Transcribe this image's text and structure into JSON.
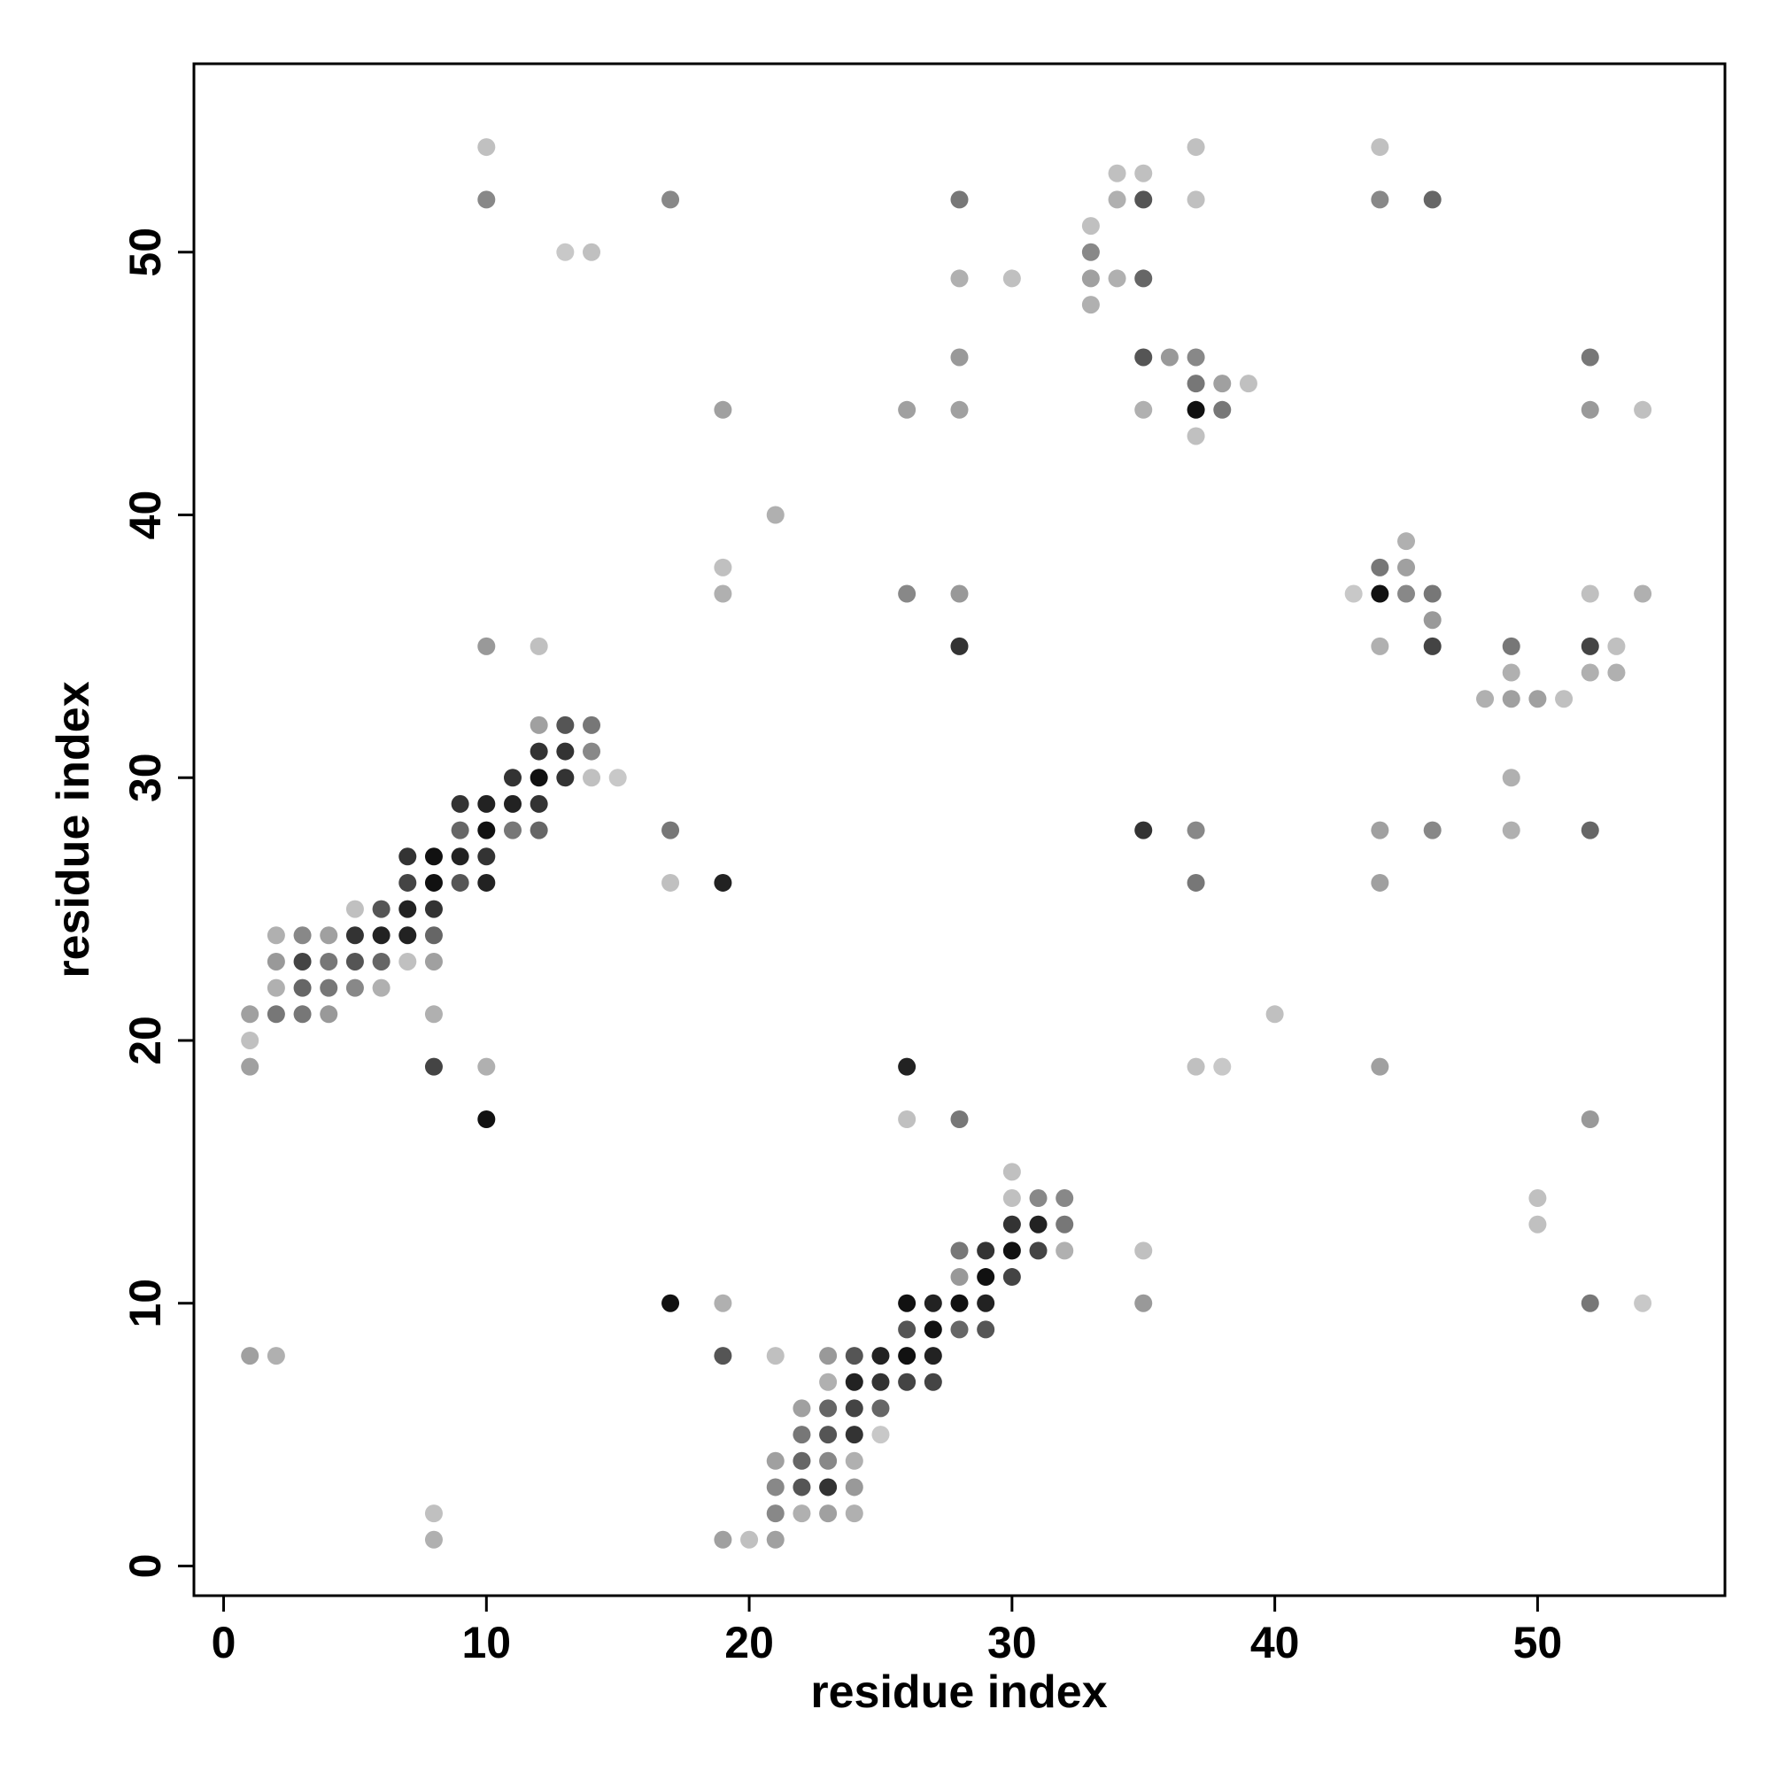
{
  "chart_data": {
    "type": "scatter",
    "x_label": "residue index",
    "y_label": "residue index",
    "xlim": [
      -1.13,
      57.13
    ],
    "ylim": [
      -1.13,
      57.17
    ],
    "xticks": [
      0,
      10,
      20,
      30,
      40,
      50
    ],
    "yticks": [
      0,
      10,
      20,
      30,
      40,
      50
    ],
    "x": [
      10,
      37,
      44,
      34,
      35,
      10,
      17,
      28,
      34,
      35,
      37,
      44,
      46,
      33,
      13,
      14,
      33,
      28,
      30,
      33,
      34,
      35,
      33,
      28,
      35,
      36,
      37,
      52,
      37,
      38,
      39,
      19,
      26,
      28,
      35,
      37,
      38,
      52,
      54,
      37,
      21,
      45,
      19,
      44,
      45,
      19,
      26,
      28,
      43,
      44,
      45,
      46,
      52,
      54,
      46,
      10,
      12,
      28,
      44,
      46,
      49,
      52,
      53,
      49,
      52,
      53,
      48,
      49,
      50,
      51,
      12,
      13,
      14,
      12,
      13,
      14,
      11,
      12,
      13,
      14,
      15,
      49,
      9,
      10,
      11,
      12,
      9,
      10,
      11,
      12,
      17,
      35,
      37,
      44,
      46,
      49,
      52,
      7,
      8,
      9,
      10,
      7,
      8,
      9,
      10,
      17,
      19,
      37,
      44,
      5,
      6,
      7,
      8,
      2,
      3,
      4,
      5,
      6,
      7,
      8,
      2,
      3,
      4,
      5,
      6,
      7,
      8,
      2,
      3,
      4,
      5,
      6,
      1,
      2,
      3,
      4,
      8,
      40,
      1,
      1,
      8,
      10,
      26,
      37,
      38,
      44,
      10,
      26,
      28,
      52,
      30,
      30,
      31,
      32,
      50,
      30,
      31,
      32,
      50,
      28,
      29,
      30,
      31,
      32,
      35,
      28,
      29,
      30,
      17,
      19,
      26,
      27,
      28,
      29,
      35,
      52,
      54,
      26,
      27,
      28,
      29,
      1,
      2,
      19,
      21,
      23,
      24,
      25,
      26,
      27,
      23,
      24,
      25,
      26,
      27,
      22,
      23,
      24,
      25,
      22,
      23,
      24,
      25,
      21,
      22,
      23,
      24,
      21,
      22,
      23,
      24,
      8,
      21,
      22,
      23,
      24,
      8,
      19,
      20,
      21
    ],
    "values": [
      54,
      54,
      54,
      53,
      53,
      52,
      52,
      52,
      52,
      52,
      52,
      52,
      52,
      51,
      50,
      50,
      50,
      49,
      49,
      49,
      49,
      49,
      48,
      46,
      46,
      46,
      46,
      46,
      45,
      45,
      45,
      44,
      44,
      44,
      44,
      44,
      44,
      44,
      44,
      43,
      40,
      39,
      38,
      38,
      38,
      37,
      37,
      37,
      37,
      37,
      37,
      37,
      37,
      37,
      36,
      35,
      35,
      35,
      35,
      35,
      35,
      35,
      35,
      34,
      34,
      34,
      33,
      33,
      33,
      33,
      32,
      32,
      32,
      31,
      31,
      31,
      30,
      30,
      30,
      30,
      30,
      30,
      29,
      29,
      29,
      29,
      28,
      28,
      28,
      28,
      28,
      28,
      28,
      28,
      28,
      28,
      28,
      27,
      27,
      27,
      27,
      26,
      26,
      26,
      26,
      26,
      26,
      26,
      26,
      25,
      25,
      25,
      25,
      24,
      24,
      24,
      24,
      24,
      24,
      24,
      23,
      23,
      23,
      23,
      23,
      23,
      23,
      22,
      22,
      22,
      22,
      22,
      21,
      21,
      21,
      21,
      21,
      21,
      20,
      19,
      19,
      19,
      19,
      19,
      19,
      19,
      17,
      17,
      17,
      17,
      15,
      14,
      14,
      14,
      14,
      13,
      13,
      13,
      13,
      12,
      12,
      12,
      12,
      12,
      12,
      11,
      11,
      11,
      10,
      10,
      10,
      10,
      10,
      10,
      10,
      10,
      10,
      9,
      9,
      9,
      9,
      8,
      8,
      8,
      8,
      8,
      8,
      8,
      8,
      8,
      7,
      7,
      7,
      7,
      7,
      6,
      6,
      6,
      6,
      5,
      5,
      5,
      5,
      4,
      4,
      4,
      4,
      3,
      3,
      3,
      3,
      2,
      2,
      2,
      2,
      2,
      1,
      1,
      1,
      1
    ],
    "colors": [
      "#c0c0c0",
      "#c0c0c0",
      "#c0c0c0",
      "#c0c0c0",
      "#c0c0c0",
      "#888888",
      "#888888",
      "#777777",
      "#b0b0b0",
      "#555555",
      "#c0c0c0",
      "#888888",
      "#666666",
      "#c0c0c0",
      "#c8c8c8",
      "#c0c0c0",
      "#888888",
      "#b0b0b0",
      "#c0c0c0",
      "#a0a0a0",
      "#b0b0b0",
      "#666666",
      "#b0b0b0",
      "#999999",
      "#555555",
      "#999999",
      "#888888",
      "#777777",
      "#777777",
      "#a0a0a0",
      "#c0c0c0",
      "#a0a0a0",
      "#a0a0a0",
      "#a0a0a0",
      "#b0b0b0",
      "#111111",
      "#777777",
      "#999999",
      "#c0c0c0",
      "#c0c0c0",
      "#b0b0b0",
      "#b0b0b0",
      "#c0c0c0",
      "#777777",
      "#a0a0a0",
      "#b0b0b0",
      "#888888",
      "#999999",
      "#c8c8c8",
      "#111111",
      "#888888",
      "#777777",
      "#c0c0c0",
      "#b0b0b0",
      "#999999",
      "#999999",
      "#c0c0c0",
      "#333333",
      "#b0b0b0",
      "#444444",
      "#777777",
      "#444444",
      "#c0c0c0",
      "#b0b0b0",
      "#b0b0b0",
      "#b0b0b0",
      "#b0b0b0",
      "#a0a0a0",
      "#a0a0a0",
      "#c0c0c0",
      "#a0a0a0",
      "#555555",
      "#777777",
      "#333333",
      "#333333",
      "#888888",
      "#333333",
      "#111111",
      "#333333",
      "#c0c0c0",
      "#c8c8c8",
      "#b0b0b0",
      "#333333",
      "#222222",
      "#222222",
      "#333333",
      "#666666",
      "#111111",
      "#777777",
      "#666666",
      "#777777",
      "#333333",
      "#888888",
      "#a0a0a0",
      "#888888",
      "#b0b0b0",
      "#666666",
      "#333333",
      "#111111",
      "#222222",
      "#333333",
      "#444444",
      "#111111",
      "#555555",
      "#222222",
      "#c0c0c0",
      "#222222",
      "#777777",
      "#a0a0a0",
      "#c0c0c0",
      "#555555",
      "#222222",
      "#333333",
      "#b0b0b0",
      "#888888",
      "#a0a0a0",
      "#333333",
      "#222222",
      "#222222",
      "#666666",
      "#999999",
      "#444444",
      "#777777",
      "#555555",
      "#666666",
      "#c0c0c0",
      "#a0a0a0",
      "#b0b0b0",
      "#666666",
      "#777777",
      "#888888",
      "#b0b0b0",
      "#a0a0a0",
      "#777777",
      "#777777",
      "#999999",
      "#b0b0b0",
      "#c0c0c0",
      "#c0c0c0",
      "#a0a0a0",
      "#444444",
      "#b0b0b0",
      "#222222",
      "#c0c0c0",
      "#c8c8c8",
      "#a0a0a0",
      "#111111",
      "#c0c0c0",
      "#777777",
      "#999999",
      "#c0c0c0",
      "#c0c0c0",
      "#888888",
      "#888888",
      "#c0c0c0",
      "#333333",
      "#222222",
      "#777777",
      "#c0c0c0",
      "#777777",
      "#333333",
      "#111111",
      "#444444",
      "#b0b0b0",
      "#c0c0c0",
      "#999999",
      "#111111",
      "#444444",
      "#111111",
      "#b0b0b0",
      "#111111",
      "#222222",
      "#111111",
      "#222222",
      "#999999",
      "#777777",
      "#c8c8c8",
      "#555555",
      "#111111",
      "#666666",
      "#555555",
      "#a0a0a0",
      "#b0b0b0",
      "#555555",
      "#c0c0c0",
      "#999999",
      "#555555",
      "#222222",
      "#111111",
      "#222222",
      "#b0b0b0",
      "#222222",
      "#333333",
      "#444444",
      "#444444",
      "#a0a0a0",
      "#666666",
      "#444444",
      "#666666",
      "#777777",
      "#555555",
      "#333333",
      "#c8c8c8",
      "#a0a0a0",
      "#666666",
      "#888888",
      "#b0b0b0",
      "#888888",
      "#555555",
      "#333333",
      "#999999",
      "#c0c0c0",
      "#888888",
      "#b0b0b0",
      "#a0a0a0",
      "#b0b0b0",
      "#b0b0b0",
      "#a0a0a0",
      "#c0c0c0",
      "#a0a0a0"
    ]
  }
}
